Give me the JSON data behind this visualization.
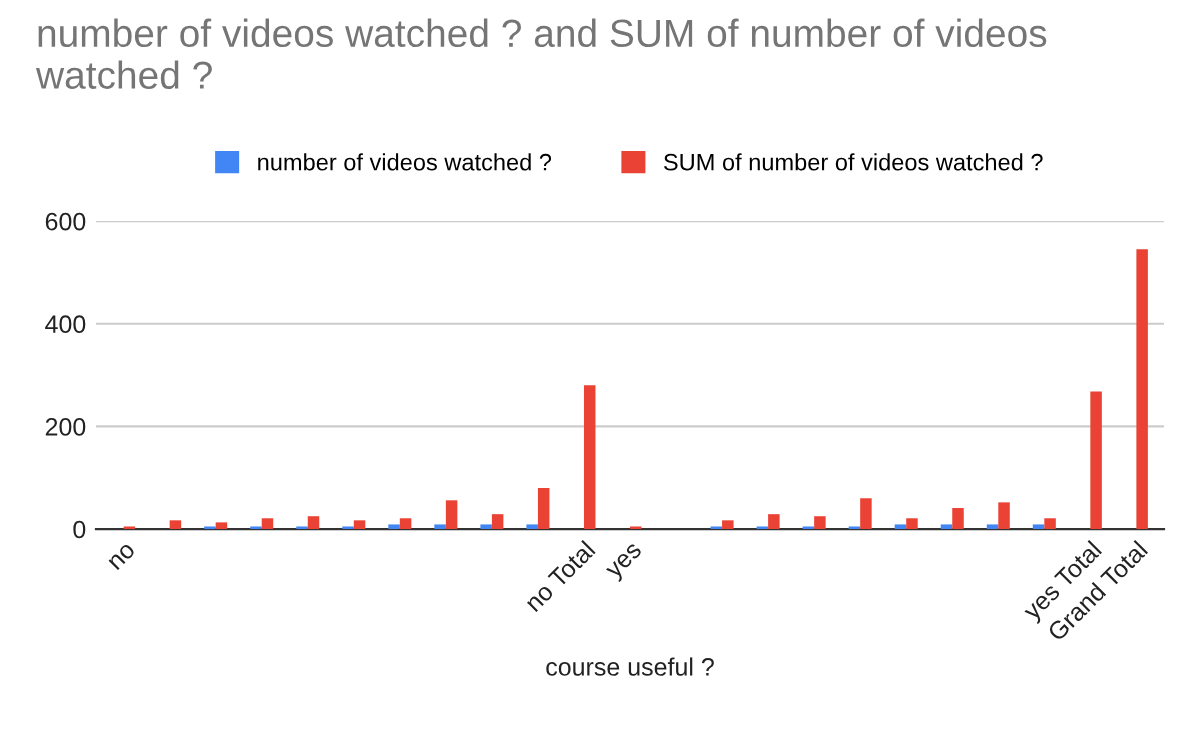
{
  "chart_data": {
    "type": "bar",
    "title": "number of videos watched ? and SUM of number of videos watched ?",
    "xlabel": "course useful ?",
    "categories": [
      "no",
      null,
      null,
      null,
      null,
      null,
      null,
      null,
      null,
      null,
      "no Total",
      "yes",
      null,
      null,
      null,
      null,
      null,
      null,
      null,
      null,
      null,
      "yes Total",
      "Grand Total"
    ],
    "series": [
      {
        "name": "number of videos watched ?",
        "color": "#4285f4",
        "values": [
          null,
          null,
          5,
          5,
          5,
          5,
          9,
          9,
          9,
          9,
          null,
          null,
          null,
          5,
          5,
          5,
          5,
          9,
          9,
          9,
          9,
          null,
          null
        ]
      },
      {
        "name": "SUM of number of videos watched ?",
        "color": "#ea4335",
        "values": [
          5,
          17,
          13,
          21,
          25,
          17,
          21,
          56,
          29,
          80,
          280,
          5,
          null,
          17,
          29,
          25,
          60,
          21,
          41,
          52,
          21,
          268,
          545
        ]
      }
    ],
    "ylim": [
      0,
      600
    ],
    "yticks": [
      0,
      200,
      400,
      600
    ],
    "grid": "y",
    "legend": "top"
  }
}
